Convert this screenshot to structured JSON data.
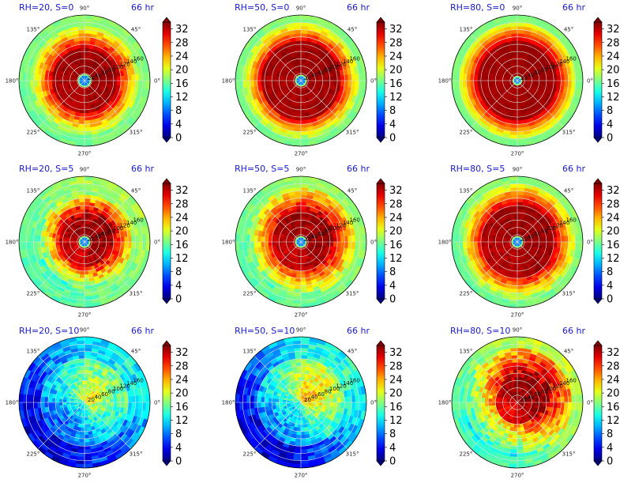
{
  "figure": {
    "time_label": "66 hr"
  },
  "colorbar": {
    "ticks": [
      "0",
      "4",
      "8",
      "12",
      "16",
      "20",
      "24",
      "28",
      "32"
    ],
    "vmin": 0,
    "vmax": 34,
    "colormap": "jet"
  },
  "polar_axes": {
    "angle_labels": [
      "0°",
      "45°",
      "90°",
      "135°",
      "180°",
      "225°",
      "270°",
      "315°"
    ],
    "radial_labels": [
      "20",
      "40",
      "60",
      "80",
      "100",
      "120",
      "140",
      "160"
    ],
    "rmax": 180
  },
  "chart_data": [
    {
      "type": "heatmap",
      "projection": "polar",
      "title": "RH=20, S=0",
      "time": "66 hr",
      "pattern": "ring",
      "eye_radius": 10,
      "core_radius": 95,
      "outer_radius": 150,
      "asymmetry": 0.15,
      "scatter": 0.3
    },
    {
      "type": "heatmap",
      "projection": "polar",
      "title": "RH=50, S=0",
      "time": "66 hr",
      "pattern": "ring",
      "eye_radius": 8,
      "core_radius": 110,
      "outer_radius": 160,
      "asymmetry": 0.1,
      "scatter": 0.25
    },
    {
      "type": "heatmap",
      "projection": "polar",
      "title": "RH=80, S=0",
      "time": "66 hr",
      "pattern": "ring",
      "eye_radius": 5,
      "core_radius": 115,
      "outer_radius": 165,
      "asymmetry": 0.05,
      "scatter": 0.15
    },
    {
      "type": "heatmap",
      "projection": "polar",
      "title": "RH=20, S=5",
      "time": "66 hr",
      "pattern": "ring_sheared",
      "eye_radius": 8,
      "core_radius": 75,
      "outer_radius": 130,
      "asymmetry": 0.5,
      "scatter": 0.5
    },
    {
      "type": "heatmap",
      "projection": "polar",
      "title": "RH=50, S=5",
      "time": "66 hr",
      "pattern": "ring_sheared",
      "eye_radius": 8,
      "core_radius": 85,
      "outer_radius": 150,
      "asymmetry": 0.35,
      "scatter": 0.4
    },
    {
      "type": "heatmap",
      "projection": "polar",
      "title": "RH=80, S=5",
      "time": "66 hr",
      "pattern": "ring_sheared",
      "eye_radius": 8,
      "core_radius": 105,
      "outer_radius": 160,
      "asymmetry": 0.2,
      "scatter": 0.3
    },
    {
      "type": "heatmap",
      "projection": "polar",
      "title": "RH=20, S=10",
      "time": "66 hr",
      "pattern": "weak",
      "eye_radius": 0,
      "core_radius": 0,
      "outer_radius": 60,
      "asymmetry": 0.6,
      "scatter": 0.5
    },
    {
      "type": "heatmap",
      "projection": "polar",
      "title": "RH=50, S=10",
      "time": "66 hr",
      "pattern": "weak",
      "eye_radius": 0,
      "core_radius": 10,
      "outer_radius": 100,
      "asymmetry": 0.7,
      "scatter": 0.5
    },
    {
      "type": "heatmap",
      "projection": "polar",
      "title": "RH=80, S=10",
      "time": "66 hr",
      "pattern": "ring_sheared",
      "eye_radius": 0,
      "core_radius": 60,
      "outer_radius": 150,
      "asymmetry": 0.8,
      "scatter": 0.55
    }
  ]
}
